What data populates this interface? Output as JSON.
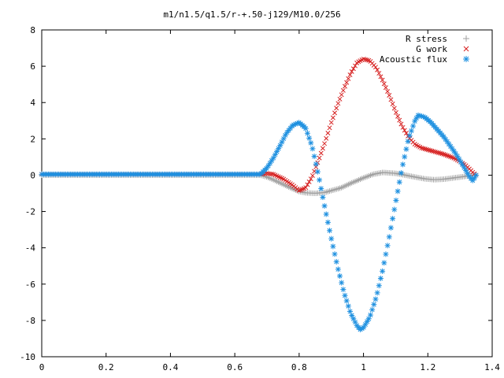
{
  "chart_data": {
    "type": "scatter",
    "title": "m1/n1.5/q1.5/r-+.50-j129/M10.0/256",
    "xlabel": "",
    "ylabel": "",
    "xlim": [
      0,
      1.4
    ],
    "ylim": [
      -10,
      8
    ],
    "grid": false,
    "legend_position": "top-right",
    "x_ticks": [
      "0",
      "0.2",
      "0.4",
      "0.6",
      "0.8",
      "1",
      "1.2",
      "1.4"
    ],
    "y_ticks": [
      "-10",
      "-8",
      "-6",
      "-4",
      "-2",
      "0",
      "2",
      "4",
      "6",
      "8"
    ],
    "series": [
      {
        "name": "R stress",
        "marker": "plus",
        "color": "#a0a0a0",
        "points": [
          [
            0.68,
            0.0
          ],
          [
            0.7,
            -0.1
          ],
          [
            0.72,
            -0.25
          ],
          [
            0.75,
            -0.5
          ],
          [
            0.78,
            -0.75
          ],
          [
            0.8,
            -0.9
          ],
          [
            0.82,
            -0.97
          ],
          [
            0.85,
            -1.0
          ],
          [
            0.88,
            -0.95
          ],
          [
            0.9,
            -0.85
          ],
          [
            0.93,
            -0.7
          ],
          [
            0.96,
            -0.45
          ],
          [
            1.0,
            -0.15
          ],
          [
            1.03,
            0.05
          ],
          [
            1.06,
            0.15
          ],
          [
            1.1,
            0.1
          ],
          [
            1.13,
            0.0
          ],
          [
            1.16,
            -0.1
          ],
          [
            1.19,
            -0.2
          ],
          [
            1.22,
            -0.25
          ],
          [
            1.25,
            -0.22
          ],
          [
            1.28,
            -0.15
          ],
          [
            1.31,
            -0.08
          ],
          [
            1.34,
            0.0
          ],
          [
            1.35,
            0.0
          ]
        ]
      },
      {
        "name": "G work",
        "marker": "cross",
        "color": "#d62020",
        "points": [
          [
            0.68,
            0.05
          ],
          [
            0.7,
            0.1
          ],
          [
            0.72,
            0.05
          ],
          [
            0.75,
            -0.2
          ],
          [
            0.78,
            -0.55
          ],
          [
            0.8,
            -0.85
          ],
          [
            0.82,
            -0.7
          ],
          [
            0.84,
            -0.1
          ],
          [
            0.86,
            0.8
          ],
          [
            0.88,
            1.8
          ],
          [
            0.9,
            2.9
          ],
          [
            0.92,
            3.9
          ],
          [
            0.94,
            4.8
          ],
          [
            0.96,
            5.6
          ],
          [
            0.98,
            6.2
          ],
          [
            1.0,
            6.4
          ],
          [
            1.02,
            6.3
          ],
          [
            1.04,
            5.9
          ],
          [
            1.06,
            5.2
          ],
          [
            1.08,
            4.4
          ],
          [
            1.1,
            3.5
          ],
          [
            1.12,
            2.7
          ],
          [
            1.14,
            2.1
          ],
          [
            1.16,
            1.7
          ],
          [
            1.18,
            1.5
          ],
          [
            1.2,
            1.4
          ],
          [
            1.22,
            1.3
          ],
          [
            1.25,
            1.15
          ],
          [
            1.28,
            0.95
          ],
          [
            1.3,
            0.75
          ],
          [
            1.32,
            0.5
          ],
          [
            1.34,
            0.15
          ],
          [
            1.35,
            0.0
          ]
        ]
      },
      {
        "name": "Acoustic flux",
        "marker": "star",
        "color": "#1e90e0",
        "points": [
          [
            0.68,
            0.05
          ],
          [
            0.7,
            0.4
          ],
          [
            0.72,
            0.95
          ],
          [
            0.74,
            1.6
          ],
          [
            0.76,
            2.3
          ],
          [
            0.78,
            2.75
          ],
          [
            0.8,
            2.9
          ],
          [
            0.82,
            2.6
          ],
          [
            0.84,
            1.6
          ],
          [
            0.86,
            0.0
          ],
          [
            0.88,
            -1.8
          ],
          [
            0.9,
            -3.5
          ],
          [
            0.92,
            -5.1
          ],
          [
            0.94,
            -6.5
          ],
          [
            0.96,
            -7.6
          ],
          [
            0.98,
            -8.3
          ],
          [
            0.99,
            -8.5
          ],
          [
            1.0,
            -8.4
          ],
          [
            1.02,
            -7.8
          ],
          [
            1.04,
            -6.7
          ],
          [
            1.06,
            -5.2
          ],
          [
            1.08,
            -3.4
          ],
          [
            1.1,
            -1.5
          ],
          [
            1.12,
            0.4
          ],
          [
            1.14,
            2.0
          ],
          [
            1.16,
            3.0
          ],
          [
            1.17,
            3.3
          ],
          [
            1.19,
            3.2
          ],
          [
            1.21,
            2.9
          ],
          [
            1.23,
            2.5
          ],
          [
            1.25,
            2.1
          ],
          [
            1.27,
            1.6
          ],
          [
            1.29,
            1.1
          ],
          [
            1.31,
            0.5
          ],
          [
            1.33,
            -0.1
          ],
          [
            1.34,
            -0.3
          ],
          [
            1.35,
            0.0
          ]
        ]
      }
    ]
  }
}
